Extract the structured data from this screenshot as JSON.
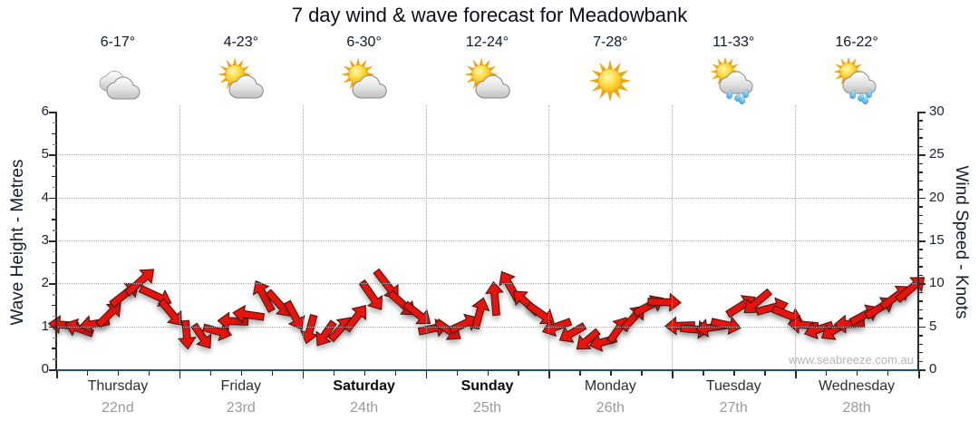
{
  "title": "7 day wind & wave forecast for Meadowbank",
  "watermark": "www.seabreeze.com.au",
  "chart_data": {
    "type": "wind_arrow_timeseries",
    "title": "7 day wind & wave forecast for Meadowbank",
    "left_axis": {
      "label": "Wave Height - Metres",
      "min": 0,
      "max": 6,
      "tick_step": 1,
      "unit": "metres"
    },
    "right_axis": {
      "label": "Wind Speed - Knots",
      "min": 0,
      "max": 30,
      "tick_step": 5,
      "unit": "knots"
    },
    "grid": {
      "h_lines_at_metres": [
        1,
        2,
        3,
        4,
        5
      ],
      "v_lines_at_day_boundaries": true
    },
    "days": [
      {
        "name": "Thursday",
        "date": "22nd",
        "temp": "6-17°",
        "icon": "cloudy",
        "weekend": false
      },
      {
        "name": "Friday",
        "date": "23rd",
        "temp": "4-23°",
        "icon": "sun-cloud",
        "weekend": false
      },
      {
        "name": "Saturday",
        "date": "24th",
        "temp": "6-30°",
        "icon": "sun-cloud",
        "weekend": true
      },
      {
        "name": "Sunday",
        "date": "25th",
        "temp": "12-24°",
        "icon": "sun-cloud",
        "weekend": true
      },
      {
        "name": "Monday",
        "date": "26th",
        "temp": "7-28°",
        "icon": "sunny",
        "weekend": false
      },
      {
        "name": "Tuesday",
        "date": "27th",
        "temp": "11-33°",
        "icon": "sun-cloud-rain",
        "weekend": false
      },
      {
        "name": "Wednesday",
        "date": "28th",
        "temp": "16-22°",
        "icon": "sun-cloud-rain",
        "weekend": false
      }
    ],
    "series": {
      "name": "wind",
      "points_per_day": 8,
      "point_format": [
        "speed_knots",
        "direction_deg_screen"
      ],
      "points": [
        [
          5.2,
          185
        ],
        [
          4.8,
          200
        ],
        [
          5.3,
          170
        ],
        [
          6.4,
          -45
        ],
        [
          8.8,
          -38
        ],
        [
          10.2,
          -42
        ],
        [
          8.6,
          25
        ],
        [
          6.6,
          50
        ],
        [
          4.0,
          85
        ],
        [
          3.8,
          55
        ],
        [
          4.4,
          15
        ],
        [
          5.6,
          182
        ],
        [
          6.3,
          188
        ],
        [
          8.6,
          -118
        ],
        [
          7.6,
          48
        ],
        [
          6.2,
          62
        ],
        [
          4.6,
          105
        ],
        [
          4.1,
          125
        ],
        [
          4.8,
          -48
        ],
        [
          6.0,
          -52
        ],
        [
          8.6,
          55
        ],
        [
          9.8,
          52
        ],
        [
          7.6,
          42
        ],
        [
          6.4,
          38
        ],
        [
          4.8,
          -12
        ],
        [
          4.5,
          35
        ],
        [
          5.3,
          -25
        ],
        [
          6.6,
          -75
        ],
        [
          8.2,
          -95
        ],
        [
          9.6,
          -120
        ],
        [
          7.8,
          -138
        ],
        [
          6.4,
          35
        ],
        [
          5.0,
          160
        ],
        [
          4.2,
          150
        ],
        [
          3.4,
          140
        ],
        [
          3.2,
          165
        ],
        [
          4.6,
          -55
        ],
        [
          6.0,
          -48
        ],
        [
          7.4,
          -28
        ],
        [
          7.8,
          2
        ],
        [
          5.1,
          178
        ],
        [
          4.6,
          5
        ],
        [
          4.9,
          172
        ],
        [
          5.2,
          12
        ],
        [
          7.4,
          -32
        ],
        [
          7.8,
          140
        ],
        [
          7.2,
          -15
        ],
        [
          6.3,
          22
        ],
        [
          5.2,
          185
        ],
        [
          4.7,
          162
        ],
        [
          4.5,
          148
        ],
        [
          5.3,
          178
        ],
        [
          6.3,
          -28
        ],
        [
          7.2,
          -32
        ],
        [
          8.4,
          -36
        ],
        [
          9.4,
          -40
        ]
      ]
    },
    "colors": {
      "arrow": "#e8130c",
      "arrow_outline": "#40130f",
      "axis": "#2a2a2a",
      "bottom_axis": "#1e5173",
      "grid": "#a8a8a8",
      "tick_minor": "#8c8c8c",
      "axis_label": "#141e2a",
      "tick_text": "#18222e",
      "day_text": "#2e2e2e",
      "date_text": "#9b9b9b",
      "temp_text": "#101820",
      "watermark_text": "#b5b5b5",
      "background": "#ffffff"
    }
  }
}
